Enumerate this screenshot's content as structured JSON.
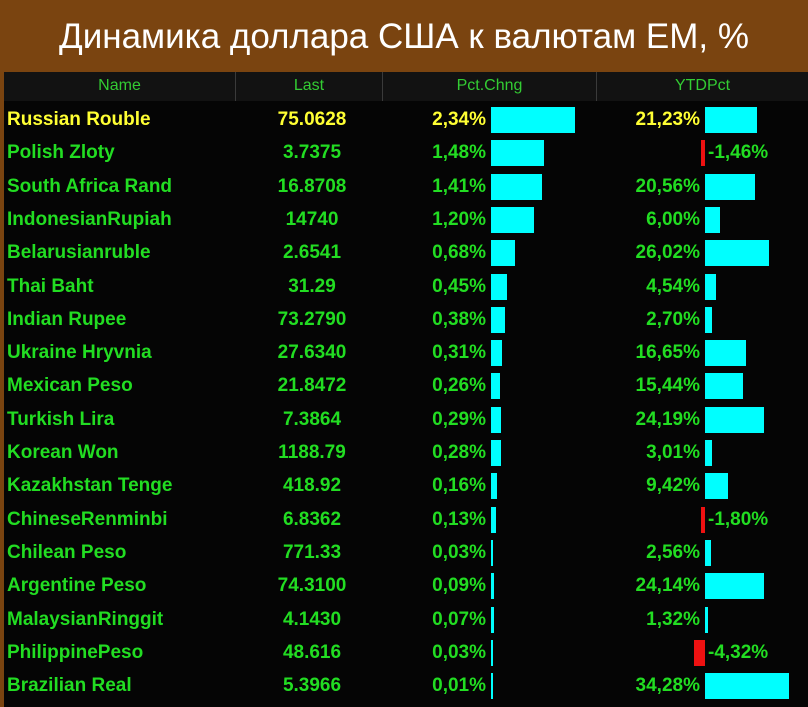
{
  "title": "Динамика доллара США к валютам EM, %",
  "columns": [
    "Name",
    "Last",
    "Pct.Chng",
    "YTDPct"
  ],
  "colors": {
    "text": "#22dd22",
    "highlight": "#ffff33",
    "positive_bar": "#00ffff",
    "negative_bar": "#ee1111",
    "background": "#050505",
    "frame": "#7a4410"
  },
  "chart_data": {
    "type": "table",
    "title": "Динамика доллара США к валютам EM, %",
    "columns": [
      "Name",
      "Last",
      "Pct.Chng",
      "YTDPct"
    ],
    "rows": [
      {
        "name": "Russian Rouble",
        "last": "75.0628",
        "pct": "2,34%",
        "pct_value": 2.34,
        "ytd": "21,23%",
        "ytd_value": 21.23
      },
      {
        "name": "Polish Zloty",
        "last": "3.7375",
        "pct": "1,48%",
        "pct_value": 1.48,
        "ytd": "-1,46%",
        "ytd_value": -1.46
      },
      {
        "name": "South Africa Rand",
        "last": "16.8708",
        "pct": "1,41%",
        "pct_value": 1.41,
        "ytd": "20,56%",
        "ytd_value": 20.56
      },
      {
        "name": "IndonesianRupiah",
        "last": "14740",
        "pct": "1,20%",
        "pct_value": 1.2,
        "ytd": "6,00%",
        "ytd_value": 6.0
      },
      {
        "name": "Belarusianruble",
        "last": "2.6541",
        "pct": "0,68%",
        "pct_value": 0.68,
        "ytd": "26,02%",
        "ytd_value": 26.02
      },
      {
        "name": "Thai Baht",
        "last": "31.29",
        "pct": "0,45%",
        "pct_value": 0.45,
        "ytd": "4,54%",
        "ytd_value": 4.54
      },
      {
        "name": "Indian Rupee",
        "last": "73.2790",
        "pct": "0,38%",
        "pct_value": 0.38,
        "ytd": "2,70%",
        "ytd_value": 2.7
      },
      {
        "name": "Ukraine Hryvnia",
        "last": "27.6340",
        "pct": "0,31%",
        "pct_value": 0.31,
        "ytd": "16,65%",
        "ytd_value": 16.65
      },
      {
        "name": "Mexican Peso",
        "last": "21.8472",
        "pct": "0,26%",
        "pct_value": 0.26,
        "ytd": "15,44%",
        "ytd_value": 15.44
      },
      {
        "name": "Turkish Lira",
        "last": "7.3864",
        "pct": "0,29%",
        "pct_value": 0.29,
        "ytd": "24,19%",
        "ytd_value": 24.19
      },
      {
        "name": "Korean Won",
        "last": "1188.79",
        "pct": "0,28%",
        "pct_value": 0.28,
        "ytd": "3,01%",
        "ytd_value": 3.01
      },
      {
        "name": "Kazakhstan Tenge",
        "last": "418.92",
        "pct": "0,16%",
        "pct_value": 0.16,
        "ytd": "9,42%",
        "ytd_value": 9.42
      },
      {
        "name": "ChineseRenminbi",
        "last": "6.8362",
        "pct": "0,13%",
        "pct_value": 0.13,
        "ytd": "-1,80%",
        "ytd_value": -1.8
      },
      {
        "name": "Chilean Peso",
        "last": "771.33",
        "pct": "0,03%",
        "pct_value": 0.03,
        "ytd": "2,56%",
        "ytd_value": 2.56
      },
      {
        "name": "Argentine Peso",
        "last": "74.3100",
        "pct": "0,09%",
        "pct_value": 0.09,
        "ytd": "24,14%",
        "ytd_value": 24.14
      },
      {
        "name": "MalaysianRinggit",
        "last": "4.1430",
        "pct": "0,07%",
        "pct_value": 0.07,
        "ytd": "1,32%",
        "ytd_value": 1.32
      },
      {
        "name": "PhilippinePeso",
        "last": "48.616",
        "pct": "0,03%",
        "pct_value": 0.03,
        "ytd": "-4,32%",
        "ytd_value": -4.32
      },
      {
        "name": "Brazilian Real",
        "last": "5.3966",
        "pct": "0,01%",
        "pct_value": 0.01,
        "ytd": "34,28%",
        "ytd_value": 34.28
      }
    ],
    "highlighted_row": "Russian Rouble"
  }
}
